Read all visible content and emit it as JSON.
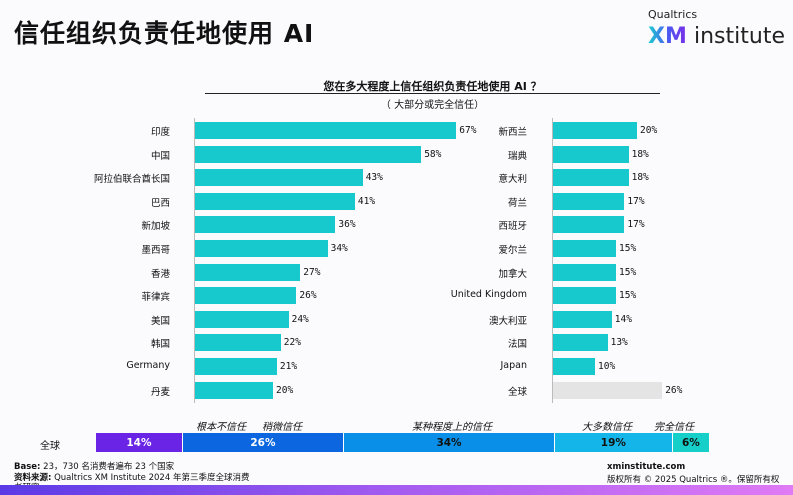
{
  "header": {
    "title": "信任组织负责任地使用 AI",
    "logo_top": "Qualtrics",
    "logo_xm": "XM",
    "logo_rest": "institute"
  },
  "colors": {
    "bar": "#17c8cc",
    "global_bar": "#e4e4e4",
    "seg": [
      "#6a24e6",
      "#0b66df",
      "#0a8fe8",
      "#14b6ea",
      "#15cfc8"
    ]
  },
  "chart_data": [
    {
      "type": "bar",
      "orientation": "horizontal",
      "title": "您在多大程度上信任组织负责任地使用 AI ？",
      "subtitle": "（ 大部分或完全信任）",
      "categories": [
        "印度",
        "中国",
        "阿拉伯联合酋长国",
        "巴西",
        "新加坡",
        "墨西哥",
        "香港",
        "菲律宾",
        "美国",
        "韩国",
        "Germany",
        "丹麦"
      ],
      "values": [
        67,
        58,
        43,
        41,
        36,
        34,
        27,
        26,
        24,
        22,
        21,
        20
      ],
      "unit": "%",
      "xlim": [
        0,
        100
      ]
    },
    {
      "type": "bar",
      "orientation": "horizontal",
      "categories": [
        "新西兰",
        "瑞典",
        "意大利",
        "荷兰",
        "西班牙",
        "爱尔兰",
        "加拿大",
        "United Kingdom",
        "澳大利亚",
        "法国",
        "Japan",
        "全球"
      ],
      "values": [
        20,
        18,
        18,
        17,
        17,
        15,
        15,
        15,
        14,
        13,
        10,
        26
      ],
      "unit": "%",
      "xlim": [
        0,
        100
      ]
    },
    {
      "type": "bar",
      "stacked": true,
      "row_label": "全球",
      "categories": [
        "根本不信任",
        "稍微信任",
        "某种程度上的信任",
        "大多数信任",
        "完全信任"
      ],
      "values": [
        14,
        26,
        34,
        19,
        6
      ],
      "unit": "%"
    }
  ],
  "footer": {
    "base_label": "Base:",
    "base_text": "23，730 名消费者遍布 23 个国家",
    "source_label": "资料来源:",
    "source_text": "Qualtrics XM Institute 2024 年第三季度全球消费",
    "source_text2": "者研究",
    "site": "xminstitute.com",
    "copyright": "版权所有 © 2025 Qualtrics ®。保留所有权"
  }
}
